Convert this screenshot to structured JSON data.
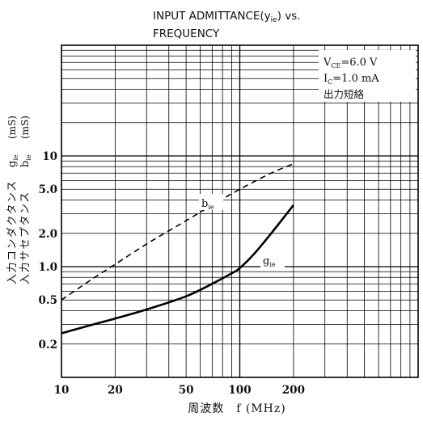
{
  "chart_data": {
    "type": "line",
    "title_lines": [
      "INPUT  ADMITTANCE(y",
      ") vs.",
      "FREQUENCY"
    ],
    "title_sub": "ie",
    "xscale": "log",
    "yscale": "log",
    "xlim": [
      10,
      1000
    ],
    "ylim": [
      0.1,
      100
    ],
    "grid": true,
    "xlabel": "周波数　f (MHz)",
    "ylabel_line1": "入力コンダクタンス",
    "ylabel_line2": "入力サセプタンス",
    "ylabel_g_main": "g",
    "ylabel_b_main": "b",
    "ylabel_sub": "ie",
    "ylabel_unit": "(mS)",
    "xticks": [
      {
        "value": 10,
        "label": "10"
      },
      {
        "value": 20,
        "label": "20"
      },
      {
        "value": 50,
        "label": "50"
      },
      {
        "value": 100,
        "label": "100"
      },
      {
        "value": 200,
        "label": "200"
      }
    ],
    "yticks": [
      {
        "value": 0.2,
        "label": "0.2"
      },
      {
        "value": 0.5,
        "label": "0.5"
      },
      {
        "value": 1.0,
        "label": "1.0"
      },
      {
        "value": 2.0,
        "label": "2.0"
      },
      {
        "value": 5.0,
        "label": "5.0"
      },
      {
        "value": 10,
        "label": "10"
      }
    ],
    "conditions": {
      "line1_main": "V",
      "line1_sub": "CE",
      "line1_rest": "=6.0  V",
      "line2_main": "I",
      "line2_sub": "C",
      "line2_rest": "=1.0  mA",
      "line3": "出力短絡"
    },
    "series": [
      {
        "name": "b",
        "name_sub": "ie",
        "style": "dashed",
        "x": [
          10,
          15,
          20,
          30,
          50,
          70,
          100,
          150,
          200
        ],
        "y": [
          0.5,
          0.78,
          1.05,
          1.6,
          2.6,
          3.6,
          5.0,
          7.0,
          8.5
        ]
      },
      {
        "name": "g",
        "name_sub": "ie",
        "style": "solid",
        "x": [
          10,
          15,
          20,
          30,
          50,
          70,
          90,
          100,
          120,
          150,
          200
        ],
        "y": [
          0.25,
          0.3,
          0.34,
          0.41,
          0.54,
          0.7,
          0.87,
          0.97,
          1.3,
          2.0,
          3.6
        ]
      }
    ]
  }
}
